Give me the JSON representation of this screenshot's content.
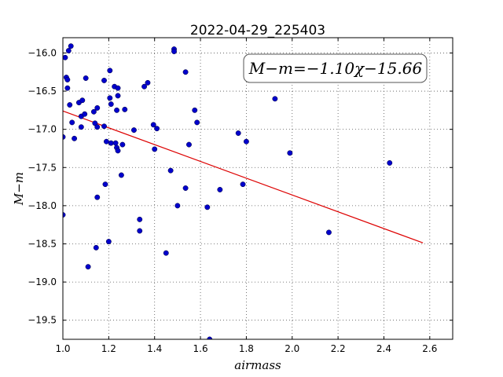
{
  "chart_data": {
    "type": "scatter",
    "title": "2022-04-29_225403",
    "xlabel": "airmass",
    "ylabel": "M−m",
    "xlim": [
      1.0,
      2.7
    ],
    "ylim": [
      -19.75,
      -15.8
    ],
    "y_inverted": true,
    "grid": true,
    "x_ticks": [
      "1.0",
      "1.2",
      "1.4",
      "1.6",
      "1.8",
      "2.0",
      "2.2",
      "2.4",
      "2.6"
    ],
    "y_ticks": [
      "−16.0",
      "−16.5",
      "−17.0",
      "−17.5",
      "−18.0",
      "−18.5",
      "−19.0",
      "−19.5"
    ],
    "annotation": "M−m=−1.10χ−15.66",
    "colors": {
      "points": "#0000cc",
      "fit": "#dd0000",
      "grid": "#555555"
    },
    "fit_line": {
      "slope": -1.1,
      "intercept": -15.66,
      "x_start": 1.0,
      "x_end": 2.57
    },
    "points": [
      {
        "x": 1.0,
        "y": -17.1
      },
      {
        "x": 1.0,
        "y": -18.12
      },
      {
        "x": 1.01,
        "y": -16.06
      },
      {
        "x": 1.015,
        "y": -16.32
      },
      {
        "x": 1.02,
        "y": -16.35
      },
      {
        "x": 1.02,
        "y": -16.46
      },
      {
        "x": 1.025,
        "y": -15.97
      },
      {
        "x": 1.03,
        "y": -16.68
      },
      {
        "x": 1.035,
        "y": -15.91
      },
      {
        "x": 1.04,
        "y": -16.91
      },
      {
        "x": 1.05,
        "y": -17.12
      },
      {
        "x": 1.07,
        "y": -16.65
      },
      {
        "x": 1.08,
        "y": -16.83
      },
      {
        "x": 1.08,
        "y": -16.97
      },
      {
        "x": 1.085,
        "y": -16.62
      },
      {
        "x": 1.095,
        "y": -16.8
      },
      {
        "x": 1.1,
        "y": -16.33
      },
      {
        "x": 1.11,
        "y": -18.8
      },
      {
        "x": 1.135,
        "y": -16.77
      },
      {
        "x": 1.14,
        "y": -16.92
      },
      {
        "x": 1.145,
        "y": -18.55
      },
      {
        "x": 1.15,
        "y": -16.97
      },
      {
        "x": 1.15,
        "y": -16.72
      },
      {
        "x": 1.15,
        "y": -17.89
      },
      {
        "x": 1.18,
        "y": -16.36
      },
      {
        "x": 1.18,
        "y": -16.96
      },
      {
        "x": 1.185,
        "y": -17.72
      },
      {
        "x": 1.19,
        "y": -17.16
      },
      {
        "x": 1.2,
        "y": -18.47
      },
      {
        "x": 1.205,
        "y": -16.23
      },
      {
        "x": 1.205,
        "y": -16.59
      },
      {
        "x": 1.21,
        "y": -16.67
      },
      {
        "x": 1.21,
        "y": -17.18
      },
      {
        "x": 1.225,
        "y": -16.44
      },
      {
        "x": 1.23,
        "y": -17.18
      },
      {
        "x": 1.235,
        "y": -16.75
      },
      {
        "x": 1.235,
        "y": -17.24
      },
      {
        "x": 1.24,
        "y": -16.46
      },
      {
        "x": 1.24,
        "y": -16.56
      },
      {
        "x": 1.24,
        "y": -17.28
      },
      {
        "x": 1.255,
        "y": -17.6
      },
      {
        "x": 1.26,
        "y": -17.2
      },
      {
        "x": 1.27,
        "y": -16.74
      },
      {
        "x": 1.31,
        "y": -17.01
      },
      {
        "x": 1.335,
        "y": -18.18
      },
      {
        "x": 1.335,
        "y": -18.33
      },
      {
        "x": 1.355,
        "y": -16.44
      },
      {
        "x": 1.37,
        "y": -16.39
      },
      {
        "x": 1.395,
        "y": -16.94
      },
      {
        "x": 1.4,
        "y": -17.26
      },
      {
        "x": 1.41,
        "y": -16.99
      },
      {
        "x": 1.45,
        "y": -18.62
      },
      {
        "x": 1.47,
        "y": -17.54
      },
      {
        "x": 1.485,
        "y": -15.95
      },
      {
        "x": 1.485,
        "y": -15.98
      },
      {
        "x": 1.5,
        "y": -18.0
      },
      {
        "x": 1.535,
        "y": -16.25
      },
      {
        "x": 1.535,
        "y": -17.77
      },
      {
        "x": 1.55,
        "y": -17.2
      },
      {
        "x": 1.575,
        "y": -16.75
      },
      {
        "x": 1.585,
        "y": -16.91
      },
      {
        "x": 1.63,
        "y": -18.02
      },
      {
        "x": 1.64,
        "y": -19.75
      },
      {
        "x": 1.685,
        "y": -17.79
      },
      {
        "x": 1.765,
        "y": -17.05
      },
      {
        "x": 1.785,
        "y": -17.72
      },
      {
        "x": 1.8,
        "y": -17.16
      },
      {
        "x": 1.925,
        "y": -16.6
      },
      {
        "x": 1.99,
        "y": -17.31
      },
      {
        "x": 2.16,
        "y": -18.35
      },
      {
        "x": 2.425,
        "y": -17.44
      }
    ]
  }
}
